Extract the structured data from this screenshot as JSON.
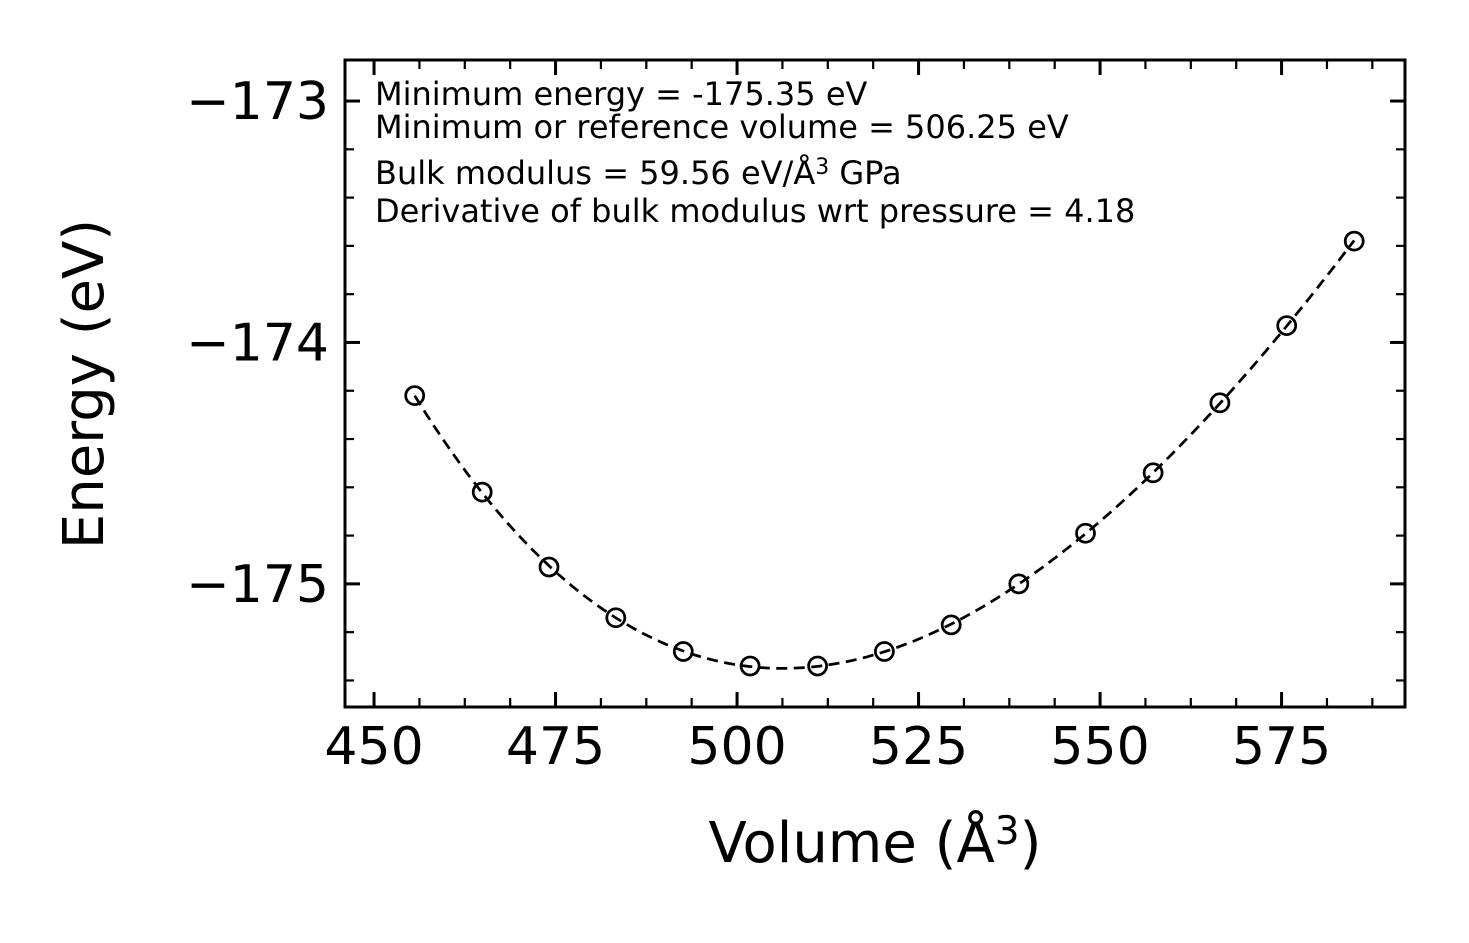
{
  "figure": {
    "background": "#ffffff",
    "foreground": "#000000"
  },
  "chart_data": {
    "type": "scatter",
    "ylabel": "Energy (eV)",
    "xlabel_parts": [
      [
        "Volume (Å",
        0
      ],
      [
        "3",
        1
      ],
      [
        ")",
        0
      ]
    ],
    "xlim": [
      446,
      592
    ],
    "ylim": [
      -175.51,
      -172.83
    ],
    "xticks": [
      450,
      475,
      500,
      525,
      550,
      575
    ],
    "xtick_labels": [
      "450",
      "475",
      "500",
      "525",
      "550",
      "575"
    ],
    "yticks": [
      -173,
      -174,
      -175
    ],
    "ytick_labels": [
      "−173",
      "−174",
      "−175"
    ],
    "x_minor_step": 6.25,
    "y_minor_step": 0.2,
    "grid": false,
    "legend": "none",
    "line_style": "dashed",
    "marker": "open-circle",
    "series_color": "#000000",
    "annotations": [
      {
        "parts": [
          [
            "Minimum energy = -175.35 eV",
            0
          ]
        ]
      },
      {
        "parts": [
          [
            "Minimum or reference volume = 506.25 eV",
            0
          ]
        ]
      },
      {
        "parts": [
          [
            "Bulk modulus = 59.56 eV/Å",
            0
          ],
          [
            "3",
            1
          ],
          [
            " GPa",
            0
          ]
        ]
      },
      {
        "parts": [
          [
            "Derivative of bulk modulus wrt pressure = 4.18",
            0
          ]
        ]
      }
    ],
    "fit": {
      "model": "birch-murnaghan",
      "E0_eV": -175.35,
      "V0": 506.25,
      "B_GPa": 59.56,
      "Bp": 4.18
    },
    "points": {
      "volume": [
        455.6,
        464.9,
        474.1,
        483.3,
        492.6,
        501.8,
        511.1,
        520.3,
        529.5,
        538.8,
        548.0,
        557.3,
        566.5,
        575.7,
        585.0
      ],
      "energy": [
        -174.22,
        -174.62,
        -174.93,
        -175.14,
        -175.28,
        -175.34,
        -175.34,
        -175.28,
        -175.17,
        -175.0,
        -174.79,
        -174.54,
        -174.25,
        -173.93,
        -173.58
      ]
    }
  }
}
